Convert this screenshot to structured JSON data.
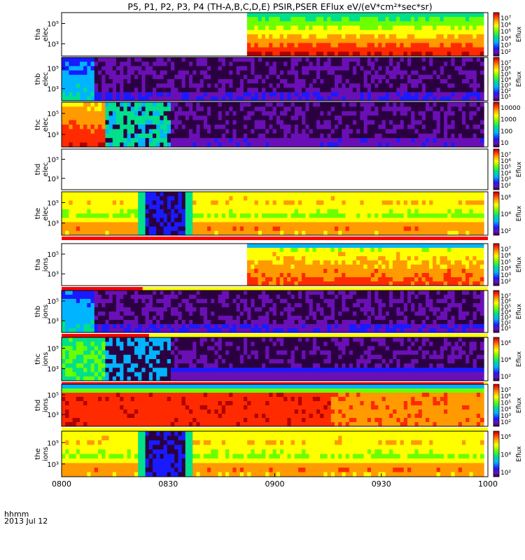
{
  "chart_data": {
    "type": "heatmap",
    "title": "P5, P1, P2, P3, P4 (TH-A,B,C,D,E) PSIR,PSER EFlux eV/(eV*cm²*sec*sr)",
    "x_ticks": [
      "0800",
      "0830",
      "0900",
      "0930",
      "1000"
    ],
    "x_range_hours": [
      8.0,
      10.0
    ],
    "x_footer_label": "hhmm",
    "x_footer_date": "2013 Jul 12",
    "panels": [
      {
        "probe": "tha",
        "species": "elec",
        "ylabel1": "tha",
        "ylabel2": "elec",
        "y_ticks": [
          "10⁵",
          "10³"
        ],
        "cbar_ticks": [
          "10⁷",
          "10⁶",
          "10⁵",
          "10⁴",
          "10³",
          "10²"
        ],
        "cbar_label": "Eflux",
        "data_start_hour": 8.87,
        "data_end_hour": 9.98,
        "pattern": "sheath_high",
        "state_bar": false
      },
      {
        "probe": "thb",
        "species": "elec",
        "ylabel1": "thb",
        "ylabel2": "elec",
        "y_ticks": [
          "10⁵",
          "10³"
        ],
        "cbar_ticks": [
          "10⁷",
          "10⁶",
          "10⁵",
          "10⁴",
          "10³",
          "10²",
          "10¹"
        ],
        "cbar_label": "Eflux",
        "data_start_hour": 8.0,
        "data_end_hour": 9.98,
        "pattern": "lobe_start_then_noise",
        "state_bar": false
      },
      {
        "probe": "thc",
        "species": "elec",
        "ylabel1": "thc",
        "ylabel2": "elec",
        "y_ticks": [
          "10⁵",
          "10³"
        ],
        "cbar_ticks": [
          "10000",
          "1000",
          "100",
          "10"
        ],
        "cbar_label": "",
        "data_start_hour": 8.0,
        "data_end_hour": 9.98,
        "pattern": "hot_start_then_noise",
        "state_bar": false
      },
      {
        "probe": "thd",
        "species": "elec",
        "ylabel1": "thd",
        "ylabel2": "elec",
        "y_ticks": [
          "10⁵",
          "10³"
        ],
        "cbar_ticks": [
          "10⁷",
          "10⁶",
          "10⁵",
          "10⁴",
          "10³",
          "10²"
        ],
        "cbar_label": "Eflux",
        "data_start_hour": null,
        "data_end_hour": null,
        "pattern": "empty",
        "state_bar": false
      },
      {
        "probe": "the",
        "species": "elec",
        "ylabel1": "the",
        "ylabel2": "elec",
        "y_ticks": [
          "10⁵",
          "10³"
        ],
        "cbar_ticks": [
          "10⁶",
          "10⁴",
          "10²"
        ],
        "cbar_label": "Eflux",
        "data_start_hour": 8.0,
        "data_end_hour": 9.98,
        "pattern": "yellow_with_gap",
        "gap_hours": [
          8.38,
          8.57
        ],
        "state_bar": true
      },
      {
        "probe": "tha",
        "species": "ions",
        "ylabel1": "tha",
        "ylabel2": "ions",
        "y_ticks": [
          "10⁵",
          "10³"
        ],
        "cbar_ticks": [
          "10⁷",
          "10⁶",
          "10⁵",
          "10⁴",
          "10³",
          "10²"
        ],
        "cbar_label": "Eflux",
        "data_start_hour": 8.87,
        "data_end_hour": 9.98,
        "pattern": "ions_sheath",
        "state_bar": true,
        "state_bar_red_end_hour": 8.38
      },
      {
        "probe": "thb",
        "species": "ions",
        "ylabel1": "thb",
        "ylabel2": "ions",
        "y_ticks": [
          "10⁵",
          "10³"
        ],
        "cbar_ticks": [
          "10⁷",
          "10⁶",
          "10⁵",
          "10⁴",
          "10³",
          "10²",
          "10¹"
        ],
        "cbar_label": "Eflux",
        "data_start_hour": 8.0,
        "data_end_hour": 9.98,
        "pattern": "lobe_start_then_noise",
        "state_bar": true,
        "state_bar_red_end_hour": 8.41
      },
      {
        "probe": "thc",
        "species": "ions",
        "ylabel1": "thc",
        "ylabel2": "ions",
        "y_ticks": [
          "10⁵",
          "10³"
        ],
        "cbar_ticks": [
          "10⁶",
          "10⁴",
          "10²"
        ],
        "cbar_label": "Eflux",
        "data_start_hour": 8.0,
        "data_end_hour": 9.98,
        "pattern": "green_start_then_noise",
        "state_bar": true,
        "state_bar_red_end_hour": 9.98
      },
      {
        "probe": "thd",
        "species": "ions",
        "ylabel1": "thd",
        "ylabel2": "ions",
        "y_ticks": [
          "10⁵",
          "10³"
        ],
        "cbar_ticks": [
          "10⁷",
          "10⁶",
          "10⁵",
          "10⁴",
          "10³",
          "10²"
        ],
        "cbar_label": "Eflux",
        "data_start_hour": 8.0,
        "data_end_hour": 9.98,
        "pattern": "dark_red",
        "state_bar": true,
        "state_bar_red_end_hour": 0
      },
      {
        "probe": "the",
        "species": "ions",
        "ylabel1": "the",
        "ylabel2": "ions",
        "y_ticks": [
          "10⁵",
          "10³"
        ],
        "cbar_ticks": [
          "10⁶",
          "10⁴",
          "10²"
        ],
        "cbar_label": "Eflux",
        "data_start_hour": 8.0,
        "data_end_hour": 9.98,
        "pattern": "yellow_with_gap",
        "gap_hours": [
          8.38,
          8.57
        ],
        "state_bar": false
      }
    ]
  }
}
